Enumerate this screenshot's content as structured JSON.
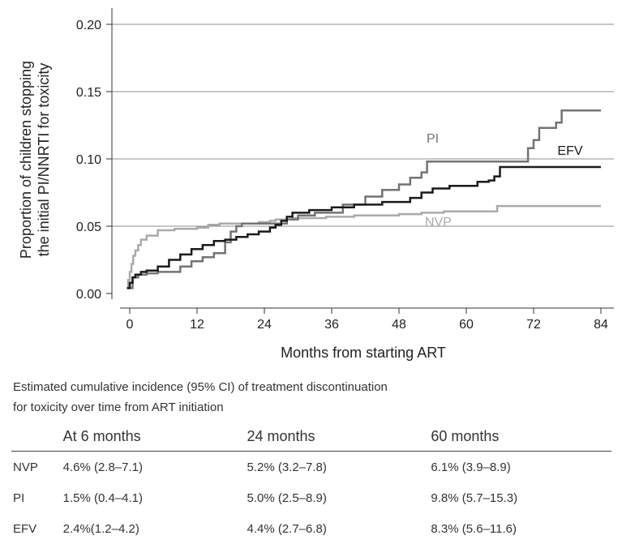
{
  "chart_data": {
    "type": "line",
    "step": true,
    "xlabel": "Months from starting ART",
    "ylabel_lines": [
      "Proportion of children stopping",
      "the initial PI/NNRTI for toxicity"
    ],
    "xlim": [
      -2,
      86
    ],
    "ylim": [
      -0.01,
      0.21
    ],
    "xticks": [
      0,
      12,
      24,
      36,
      48,
      60,
      72,
      84
    ],
    "yticks": [
      0.0,
      0.05,
      0.1,
      0.15,
      0.2
    ],
    "ytick_labels": [
      "0.00",
      "0.05",
      "0.10",
      "0.15",
      "0.20"
    ],
    "grid": "horizontal",
    "colors": {
      "NVP": "#aaaaaa",
      "PI": "#737373",
      "EFV": "#1a1a1a"
    },
    "series": [
      {
        "name": "NVP",
        "x": [
          -0.5,
          -0.3,
          0,
          0.3,
          0.6,
          1,
          1.5,
          2,
          3,
          5,
          8,
          12,
          14,
          16,
          19,
          21,
          23,
          25,
          26,
          29,
          35,
          40,
          48,
          52,
          56,
          62,
          65.5,
          84
        ],
        "y": [
          0.004,
          0.01,
          0.016,
          0.022,
          0.028,
          0.032,
          0.036,
          0.04,
          0.043,
          0.047,
          0.048,
          0.049,
          0.051,
          0.052,
          0.052,
          0.052,
          0.053,
          0.054,
          0.055,
          0.056,
          0.057,
          0.058,
          0.059,
          0.06,
          0.061,
          0.061,
          0.065,
          0.065
        ]
      },
      {
        "name": "PI",
        "x": [
          -0.5,
          0.5,
          1.5,
          3,
          5,
          7,
          9,
          11,
          13,
          15,
          17,
          18,
          19,
          20,
          24,
          28,
          30,
          33,
          38,
          42,
          45,
          48,
          50,
          52,
          53,
          66,
          71,
          72,
          73,
          76,
          77,
          84
        ],
        "y": [
          0.004,
          0.012,
          0.014,
          0.015,
          0.016,
          0.016,
          0.02,
          0.024,
          0.027,
          0.03,
          0.038,
          0.046,
          0.05,
          0.052,
          0.052,
          0.055,
          0.058,
          0.06,
          0.066,
          0.072,
          0.077,
          0.081,
          0.086,
          0.09,
          0.098,
          0.098,
          0.108,
          0.114,
          0.123,
          0.127,
          0.136,
          0.136
        ]
      },
      {
        "name": "EFV",
        "x": [
          -0.5,
          0,
          0.5,
          1,
          2,
          3,
          5,
          7,
          9,
          11,
          13,
          15,
          17,
          19,
          21,
          23,
          25,
          26,
          27,
          28,
          29,
          32,
          36,
          40,
          45,
          50,
          52,
          54,
          57,
          62,
          64,
          65,
          66,
          84
        ],
        "y": [
          0.004,
          0.008,
          0.012,
          0.014,
          0.016,
          0.017,
          0.02,
          0.025,
          0.029,
          0.033,
          0.036,
          0.039,
          0.04,
          0.042,
          0.044,
          0.046,
          0.049,
          0.051,
          0.054,
          0.057,
          0.06,
          0.062,
          0.064,
          0.066,
          0.068,
          0.071,
          0.075,
          0.078,
          0.08,
          0.083,
          0.084,
          0.087,
          0.094,
          0.094
        ]
      }
    ],
    "annotations": [
      {
        "text": "PI",
        "series": "PI",
        "x": 54,
        "y": 0.112
      },
      {
        "text": "EFV",
        "series": "EFV",
        "x": 78.5,
        "y": 0.103
      },
      {
        "text": "NVP",
        "series": "NVP",
        "x": 55,
        "y": 0.05
      }
    ]
  },
  "caption": {
    "line1": "Estimated cumulative incidence (95% CI) of treatment discontinuation",
    "line2": "for toxicity over time from ART initiation"
  },
  "table": {
    "headers": [
      "",
      "At 6 months",
      "24 months",
      "60 months"
    ],
    "rows": [
      [
        "NVP",
        "4.6% (2.8–7.1)",
        "5.2% (3.2–7.8)",
        "6.1% (3.9–8.9)"
      ],
      [
        "PI",
        "1.5% (0.4–4.1)",
        "5.0% (2.5–8.9)",
        "9.8% (5.7–15.3)"
      ],
      [
        "EFV",
        "2.4%(1.2–4.2)",
        "4.4% (2.7–6.8)",
        "8.3% (5.6–11.6)"
      ]
    ]
  }
}
